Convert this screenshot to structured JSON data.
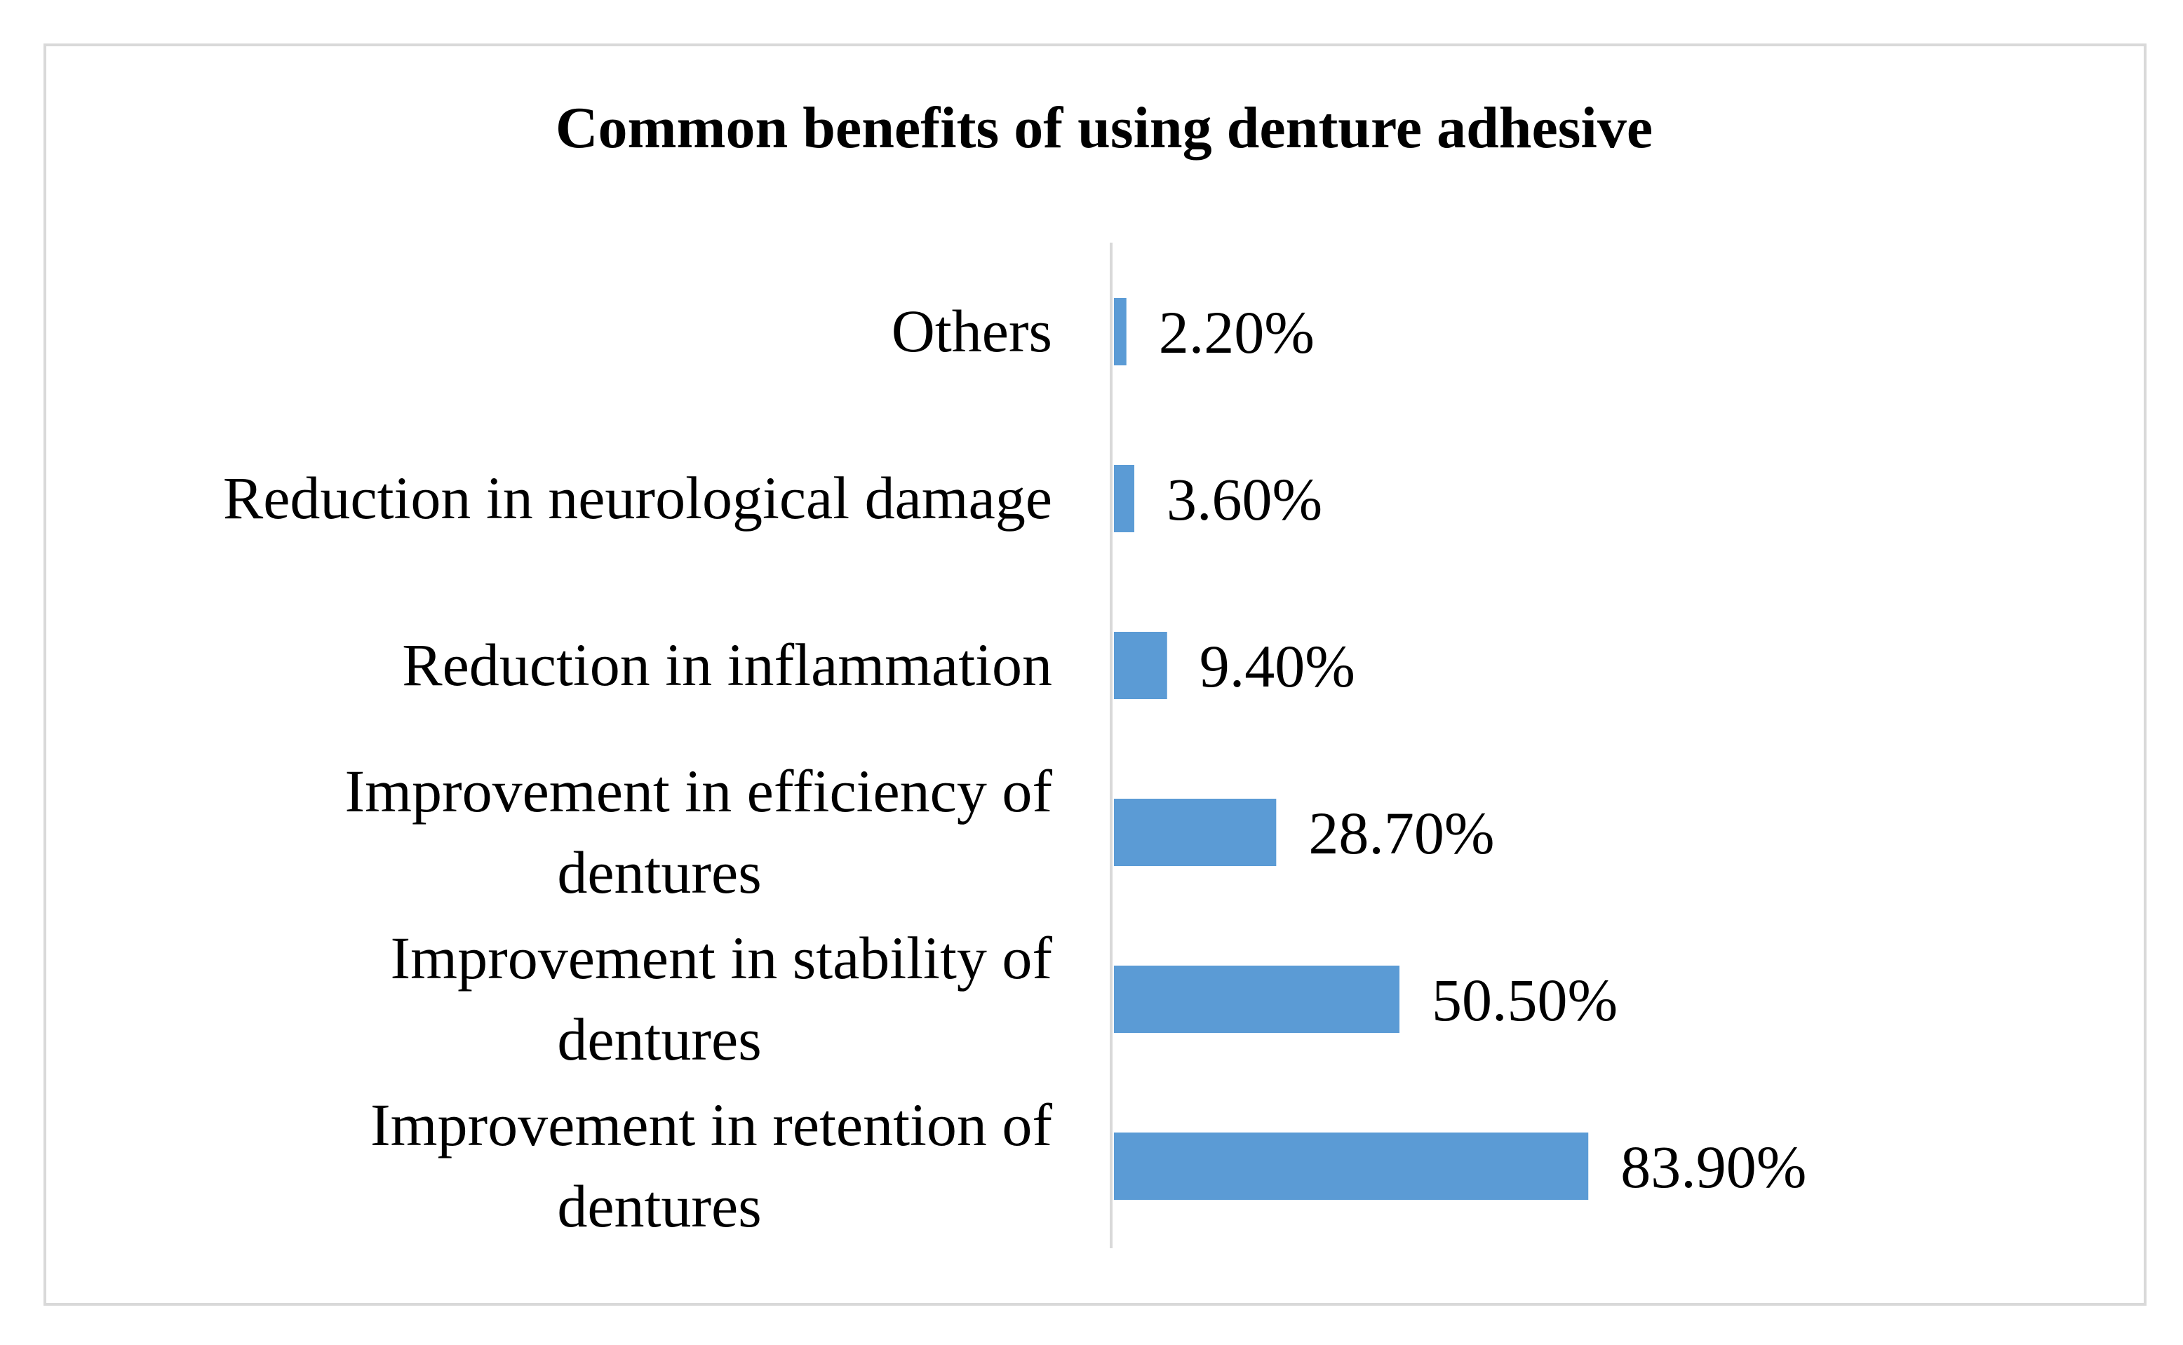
{
  "chart_data": {
    "type": "bar",
    "orientation": "horizontal",
    "title": "Common benefits of using denture adhesive",
    "categories": [
      [
        "Others"
      ],
      [
        "Reduction in neurological damage"
      ],
      [
        "Reduction in inflammation"
      ],
      [
        "Improvement in efficiency of",
        "dentures"
      ],
      [
        "Improvement in stability of",
        "dentures"
      ],
      [
        "Improvement in retention of",
        "dentures"
      ]
    ],
    "values": [
      2.2,
      3.6,
      9.4,
      28.7,
      50.5,
      83.9
    ],
    "data_labels": [
      "2.20%",
      "3.60%",
      "9.40%",
      "28.70%",
      "50.50%",
      "83.90%"
    ],
    "value_unit": "%",
    "xlim": [
      0,
      90
    ],
    "bar_color": "#5b9bd5",
    "axis_color": "#d9d9d9",
    "grid": false,
    "legend": "none"
  }
}
